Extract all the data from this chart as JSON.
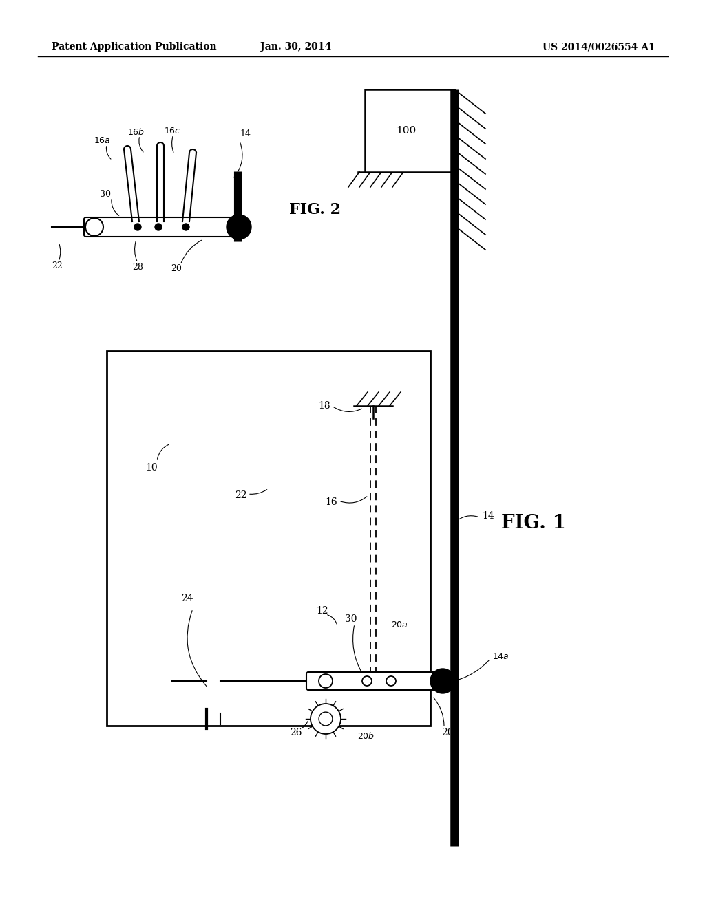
{
  "bg_color": "#ffffff",
  "line_color": "#000000",
  "header_text_left": "Patent Application Publication",
  "header_text_mid": "Jan. 30, 2014",
  "header_text_right": "US 2014/0026554 A1",
  "fig1_label": "FIG. 1",
  "fig2_label": "FIG. 2"
}
